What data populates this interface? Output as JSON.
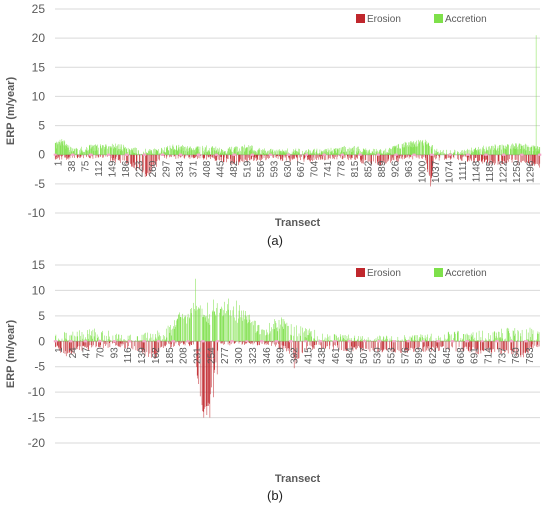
{
  "colors": {
    "erosion": "#c0272d",
    "accretion": "#7ee04a",
    "axis_text": "#5a5a5a",
    "grid": "#d9d9d9",
    "zero_line": "#bfbfbf",
    "zero_marker": "#f4a6c9"
  },
  "chart_data": [
    {
      "type": "bar",
      "panel_label": "(a)",
      "xlabel": "Transect",
      "ylabel": "ERP (m/year)",
      "ylim": [
        -10,
        25
      ],
      "yticks": [
        25,
        20,
        15,
        10,
        5,
        0,
        -5,
        -10
      ],
      "grid": true,
      "legend_position": "top-right",
      "x_count": 1310,
      "x_tick_labels": [
        "1",
        "38",
        "75",
        "112",
        "149",
        "186",
        "223",
        "260",
        "297",
        "334",
        "371",
        "408",
        "445",
        "482",
        "519",
        "556",
        "593",
        "630",
        "667",
        "704",
        "741",
        "778",
        "815",
        "852",
        "889",
        "926",
        "963",
        "1000",
        "1037",
        "1074",
        "1111",
        "1148",
        "1185",
        "1222",
        "1259",
        "1296"
      ],
      "series": [
        {
          "name": "Erosion",
          "anchors": [
            [
              1,
              -0.5
            ],
            [
              30,
              -0.6
            ],
            [
              60,
              -0.3
            ],
            [
              120,
              -0.4
            ],
            [
              200,
              -1.2
            ],
            [
              230,
              -2.8
            ],
            [
              250,
              -3.6
            ],
            [
              265,
              -2.3
            ],
            [
              290,
              -0.5
            ],
            [
              340,
              -0.4
            ],
            [
              420,
              -0.5
            ],
            [
              470,
              -1.0
            ],
            [
              490,
              -1.5
            ],
            [
              520,
              -0.8
            ],
            [
              580,
              -0.5
            ],
            [
              660,
              -0.8
            ],
            [
              720,
              -0.6
            ],
            [
              790,
              -0.5
            ],
            [
              840,
              -1.2
            ],
            [
              870,
              -1.5
            ],
            [
              900,
              -1.2
            ],
            [
              940,
              -0.5
            ],
            [
              1000,
              -0.4
            ],
            [
              1015,
              -5.0
            ],
            [
              1025,
              -0.6
            ],
            [
              1080,
              -0.5
            ],
            [
              1140,
              -1.0
            ],
            [
              1190,
              -1.5
            ],
            [
              1230,
              -1.2
            ],
            [
              1260,
              -1.4
            ],
            [
              1290,
              -1.5
            ],
            [
              1305,
              -2.0
            ]
          ],
          "jitter": 0.5,
          "density": 0.45,
          "seed": 11
        },
        {
          "name": "Accretion",
          "anchors": [
            [
              1,
              1.5
            ],
            [
              20,
              2.2
            ],
            [
              40,
              1.0
            ],
            [
              60,
              0.6
            ],
            [
              100,
              1.2
            ],
            [
              150,
              1.5
            ],
            [
              200,
              1.0
            ],
            [
              230,
              0.5
            ],
            [
              280,
              0.6
            ],
            [
              320,
              1.2
            ],
            [
              380,
              1.0
            ],
            [
              420,
              1.0
            ],
            [
              450,
              0.6
            ],
            [
              480,
              0.8
            ],
            [
              520,
              1.2
            ],
            [
              560,
              0.6
            ],
            [
              600,
              0.5
            ],
            [
              640,
              0.6
            ],
            [
              700,
              0.6
            ],
            [
              760,
              0.8
            ],
            [
              800,
              1.0
            ],
            [
              850,
              0.5
            ],
            [
              900,
              0.6
            ],
            [
              930,
              1.5
            ],
            [
              970,
              1.8
            ],
            [
              1000,
              2.2
            ],
            [
              1030,
              0.6
            ],
            [
              1070,
              0.4
            ],
            [
              1110,
              0.5
            ],
            [
              1150,
              1.0
            ],
            [
              1190,
              1.2
            ],
            [
              1230,
              1.4
            ],
            [
              1260,
              1.5
            ],
            [
              1290,
              1.0
            ]
          ],
          "jitter": 0.6,
          "density": 0.7,
          "seed": 7,
          "peaks": [
            [
              1300,
              20.5
            ]
          ]
        }
      ]
    },
    {
      "type": "bar",
      "panel_label": "(b)",
      "xlabel": "Transect",
      "ylabel": "ERP (m/year)",
      "ylim": [
        -20,
        15
      ],
      "yticks": [
        15,
        10,
        5,
        0,
        -5,
        -10,
        -15,
        -20
      ],
      "grid": true,
      "legend_position": "top-right",
      "x_count": 800,
      "x_tick_labels": [
        "1",
        "24",
        "47",
        "70",
        "93",
        "116",
        "139",
        "162",
        "185",
        "208",
        "231",
        "254",
        "277",
        "300",
        "323",
        "346",
        "369",
        "392",
        "415",
        "438",
        "461",
        "484",
        "507",
        "530",
        "553",
        "576",
        "599",
        "622",
        "645",
        "668",
        "691",
        "714",
        "737",
        "760",
        "783"
      ],
      "series": [
        {
          "name": "Erosion",
          "anchors": [
            [
              1,
              -1.0
            ],
            [
              20,
              -2.5
            ],
            [
              40,
              -1.5
            ],
            [
              70,
              -1.0
            ],
            [
              100,
              -0.5
            ],
            [
              130,
              -1.0
            ],
            [
              150,
              -2.5
            ],
            [
              165,
              -3.0
            ],
            [
              180,
              -1.0
            ],
            [
              200,
              -0.5
            ],
            [
              230,
              -0.5
            ],
            [
              237,
              -9.0
            ],
            [
              245,
              -14.0
            ],
            [
              255,
              -12.0
            ],
            [
              262,
              -7.0
            ],
            [
              270,
              -1.0
            ],
            [
              300,
              -0.3
            ],
            [
              360,
              -0.5
            ],
            [
              390,
              -2.0
            ],
            [
              400,
              -4.0
            ],
            [
              410,
              -1.5
            ],
            [
              450,
              -1.0
            ],
            [
              480,
              -1.5
            ],
            [
              520,
              -1.5
            ],
            [
              560,
              -2.0
            ],
            [
              600,
              -1.5
            ],
            [
              640,
              -1.5
            ],
            [
              680,
              -1.5
            ],
            [
              700,
              -2.0
            ],
            [
              720,
              -1.8
            ],
            [
              750,
              -2.0
            ],
            [
              770,
              -3.0
            ],
            [
              790,
              -1.0
            ]
          ],
          "jitter": 0.6,
          "density": 0.6,
          "seed": 23,
          "peaks": [
            [
              246,
              -15.0
            ],
            [
              251,
              -14.5
            ],
            [
              256,
              -15.0
            ],
            [
              262,
              -11.0
            ],
            [
              268,
              -6.5
            ],
            [
              395,
              -5.3
            ]
          ]
        },
        {
          "name": "Accretion",
          "anchors": [
            [
              1,
              0.5
            ],
            [
              40,
              0.8
            ],
            [
              75,
              1.5
            ],
            [
              100,
              0.5
            ],
            [
              140,
              0.3
            ],
            [
              170,
              1.0
            ],
            [
              195,
              2.0
            ],
            [
              205,
              5.0
            ],
            [
              220,
              4.0
            ],
            [
              232,
              7.0
            ],
            [
              240,
              6.0
            ],
            [
              250,
              3.5
            ],
            [
              265,
              6.0
            ],
            [
              285,
              6.5
            ],
            [
              300,
              5.0
            ],
            [
              320,
              4.5
            ],
            [
              340,
              2.0
            ],
            [
              360,
              3.0
            ],
            [
              375,
              3.5
            ],
            [
              390,
              2.5
            ],
            [
              410,
              1.5
            ],
            [
              440,
              0.5
            ],
            [
              480,
              0.4
            ],
            [
              520,
              0.3
            ],
            [
              560,
              0.3
            ],
            [
              600,
              0.4
            ],
            [
              640,
              0.5
            ],
            [
              660,
              1.0
            ],
            [
              680,
              0.6
            ],
            [
              720,
              0.8
            ],
            [
              745,
              1.5
            ],
            [
              770,
              1.0
            ],
            [
              795,
              1.5
            ]
          ],
          "jitter": 1.4,
          "density": 0.75,
          "seed": 5,
          "peaks": [
            [
              232,
              12.3
            ],
            [
              262,
              8.2
            ],
            [
              268,
              7.5
            ],
            [
              287,
              8.4
            ],
            [
              300,
              8.0
            ],
            [
              305,
              7.1
            ],
            [
              252,
              7.6
            ]
          ]
        }
      ]
    }
  ]
}
